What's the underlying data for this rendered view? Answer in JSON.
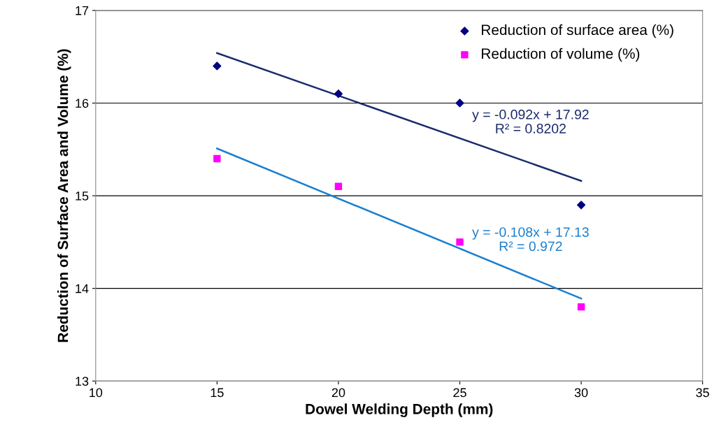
{
  "chart_data": {
    "type": "scatter",
    "xlabel": "Dowel Welding Depth (mm)",
    "ylabel": "Reduction of Surface Area and Volume (%)",
    "series": [
      {
        "name": "Reduction of surface area (%)",
        "color": "#000080",
        "marker": "diamond",
        "x": [
          15,
          20,
          25,
          30
        ],
        "values": [
          16.4,
          16.1,
          16.0,
          14.9
        ]
      },
      {
        "name": "Reduction of volume (%)",
        "color": "#ff00ff",
        "marker": "square",
        "x": [
          15,
          20,
          25,
          30
        ],
        "values": [
          15.4,
          15.1,
          14.5,
          13.8
        ]
      },
      {
        "type": "line",
        "color": "#1a2a6c",
        "marker": "none",
        "x": [
          15,
          30
        ],
        "values": [
          16.54,
          15.16
        ]
      },
      {
        "type": "line",
        "color": "#1a7fd0",
        "marker": "none",
        "x": [
          15,
          30
        ],
        "values": [
          15.51,
          13.89
        ]
      }
    ],
    "annotations": [
      "y = -0.092x + 17.92\nR² = 0.8202",
      "y = -0.108x + 17.13\nR² = 0.972"
    ],
    "xlim": [
      10,
      35
    ],
    "xticks": [
      10,
      15,
      20,
      25,
      30,
      35
    ],
    "ylim": [
      13,
      17
    ],
    "yticks": [
      13,
      14,
      15,
      16,
      17
    ],
    "grid": "y",
    "legend": "top right",
    "line_style": "solid"
  }
}
